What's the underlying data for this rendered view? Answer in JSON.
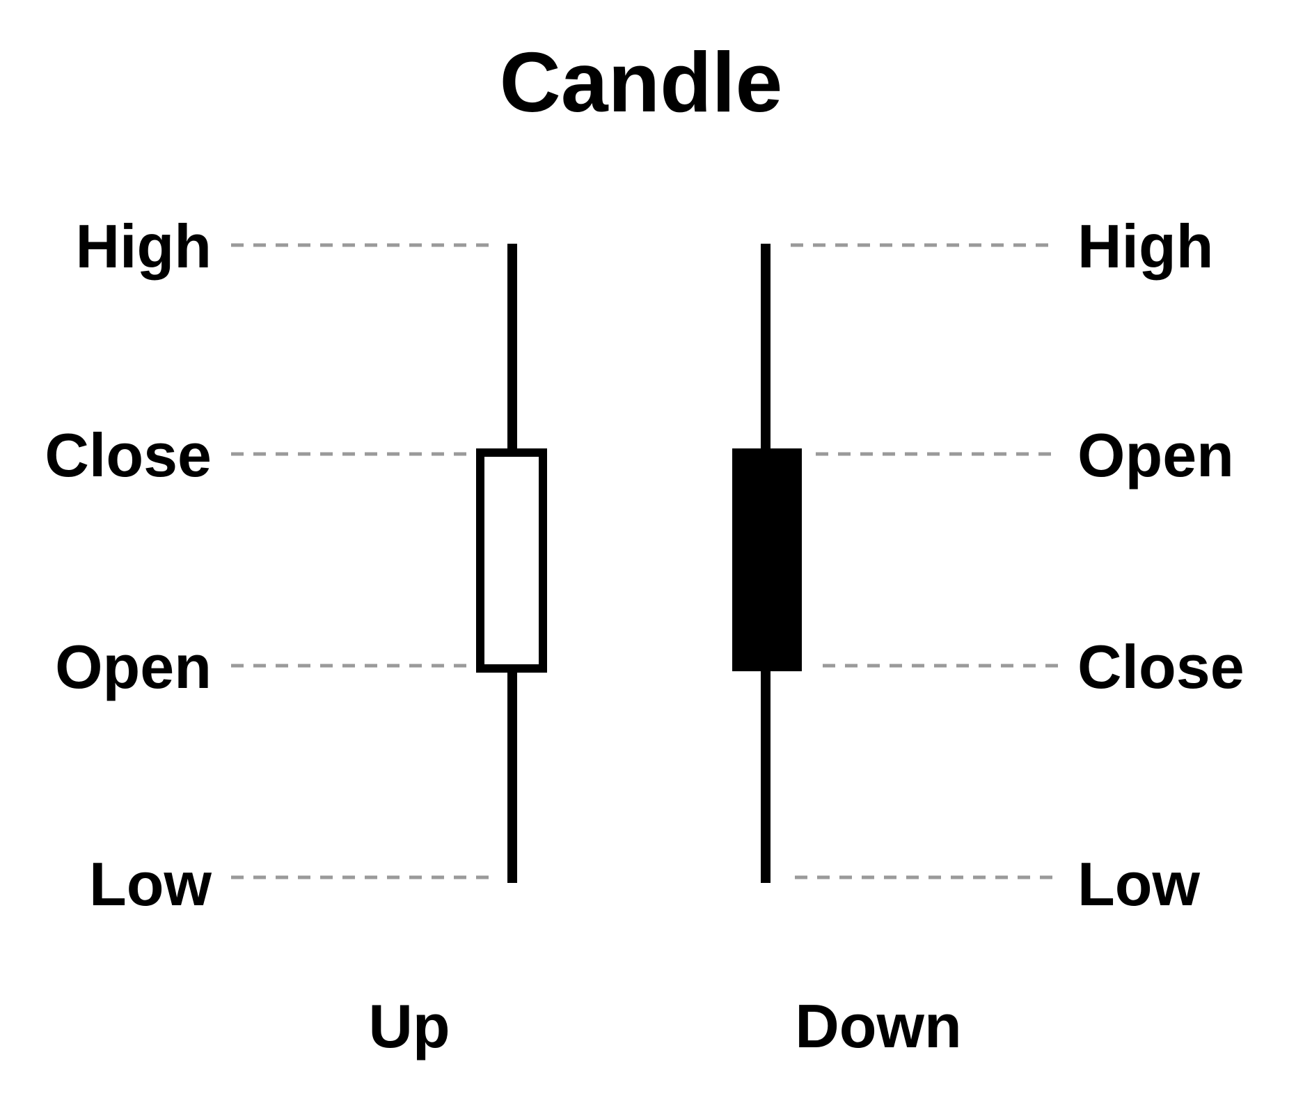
{
  "title": "Candle",
  "up_candle": {
    "caption": "Up",
    "labels": {
      "high": "High",
      "close": "Close",
      "open": "Open",
      "low": "Low"
    },
    "body_color": "#ffffff"
  },
  "down_candle": {
    "caption": "Down",
    "labels": {
      "high": "High",
      "open": "Open",
      "close": "Close",
      "low": "Low"
    },
    "body_color": "#000000"
  },
  "colors": {
    "ink": "#000000",
    "guide": "#9a9a9a",
    "background": "#ffffff"
  }
}
